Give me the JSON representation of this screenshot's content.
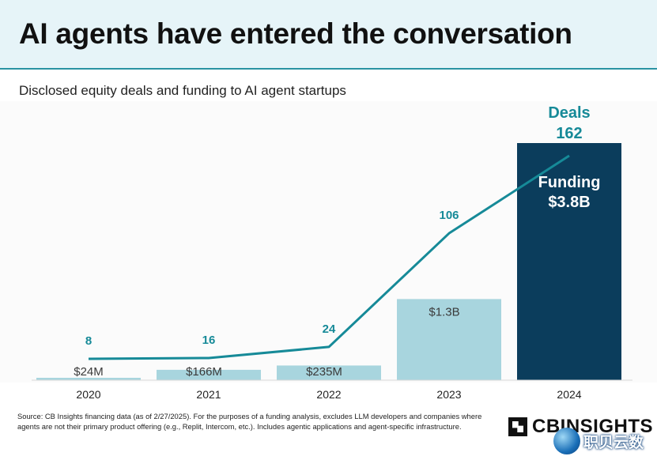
{
  "header": {
    "title": "AI agents have entered the conversation",
    "subtitle": "Disclosed equity deals and funding to AI agent startups"
  },
  "chart_data": {
    "type": "bar",
    "categories": [
      "2020",
      "2021",
      "2022",
      "2023",
      "2024"
    ],
    "series": [
      {
        "kind": "bar",
        "values_usd_millions": [
          24,
          166,
          235,
          1300,
          3800
        ],
        "value_labels": [
          "$24M",
          "$166M",
          "$235M",
          "$1.3B",
          "$3.8B"
        ],
        "name": "Funding"
      },
      {
        "kind": "line",
        "values": [
          8,
          16,
          24,
          106,
          162
        ],
        "name": "Deals"
      }
    ],
    "annotations": {
      "deals_label": "Deals",
      "deals_value": "162",
      "funding_label": "Funding",
      "funding_value": "$3.8B"
    },
    "colors": {
      "bar_light": "#a8d5de",
      "bar_dark": "#0b3d5c",
      "line": "#168a98",
      "bar_label": "#3a3a3a",
      "deal_label": "#168a98"
    }
  },
  "footer": {
    "source": "Source: CB Insights financing data (as of 2/27/2025). For the purposes of a funding analysis, excludes LLM developers and companies where agents are not their primary product offering (e.g., Replit, Intercom, etc.). Includes agentic applications and agent-specific infrastructure.",
    "logo_text": "CBINSIGHTS",
    "watermark_text": "职贝云数"
  }
}
